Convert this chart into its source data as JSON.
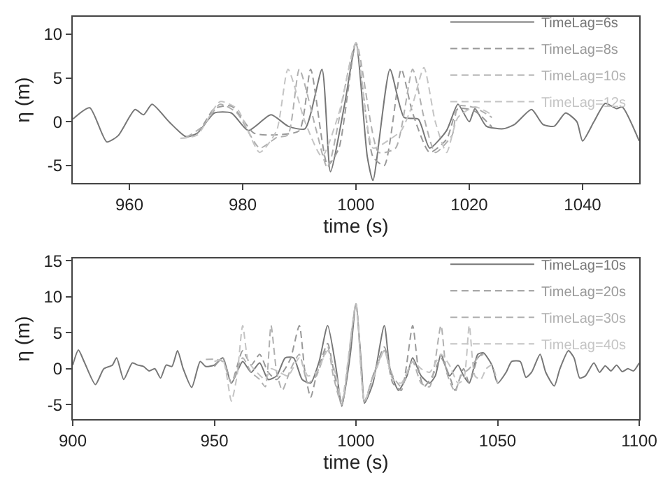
{
  "chart_data": [
    {
      "type": "line",
      "xlabel": "time (s)",
      "ylabel": "η (m)",
      "xlim": [
        950,
        1050
      ],
      "ylim": [
        -7,
        12
      ],
      "xticks": [
        960,
        980,
        1000,
        1020,
        1040
      ],
      "yticks": [
        -5,
        0,
        5,
        10
      ],
      "grid": false,
      "legend": "top right",
      "marker": "none",
      "series": [
        {
          "name": "TimeLag=6s",
          "color": "#777777",
          "line_style": "solid",
          "x": [
            950,
            953,
            956,
            958,
            961,
            962.5,
            964,
            967,
            970,
            972,
            975,
            978,
            981,
            985,
            988,
            991,
            994,
            995.5,
            998,
            1000,
            1002,
            1003,
            1006,
            1008.5,
            1011,
            1013,
            1016,
            1018,
            1020,
            1021,
            1023,
            1026,
            1028,
            1031,
            1033,
            1035,
            1037,
            1039,
            1040,
            1042,
            1044,
            1046,
            1047,
            1050
          ],
          "values": [
            0.3,
            1.6,
            -2.3,
            -1.6,
            1.4,
            0.8,
            2.0,
            0,
            -1.7,
            -1.3,
            1.0,
            1.0,
            -1.0,
            0.8,
            -0.5,
            -0.8,
            6,
            -5.7,
            2,
            9,
            -4,
            -6.7,
            6,
            0.5,
            0.3,
            -3,
            -1,
            2.0,
            0,
            1.5,
            -0.5,
            -0.8,
            -0.3,
            1.4,
            -0.3,
            -0.5,
            1.0,
            0,
            -2.2,
            0,
            2.1,
            1.5,
            1.7,
            -2.2
          ]
        },
        {
          "name": "TimeLag=8s",
          "color": "#999999",
          "line_style": "dashed",
          "x": [
            970,
            972,
            975,
            978,
            982,
            986,
            990,
            992,
            995,
            997,
            1000,
            1003,
            1005,
            1008,
            1010,
            1013,
            1016,
            1018,
            1021,
            1024
          ],
          "values": [
            -1.7,
            -1.3,
            1.5,
            1.8,
            -1.3,
            -1.5,
            -1,
            6,
            -5,
            -3,
            9,
            -4,
            -5,
            6,
            1,
            -3.5,
            -2,
            1.5,
            1.2,
            -0.6
          ]
        },
        {
          "name": "TimeLag=10s",
          "color": "#b0b0b0",
          "line_style": "dashed",
          "x": [
            970,
            973,
            976,
            979,
            983,
            986,
            988,
            990,
            993,
            995,
            1000,
            1004,
            1007,
            1010,
            1012,
            1014,
            1017,
            1018,
            1021,
            1024
          ],
          "values": [
            -1.8,
            -0.5,
            2,
            1,
            -3,
            -1.8,
            -1.5,
            6,
            -1,
            -5.3,
            9,
            -3.5,
            -3,
            6,
            0.5,
            -3.5,
            -1.5,
            1.8,
            1.6,
            0.5
          ]
        },
        {
          "name": "TimeLag=12s",
          "color": "#c4c4c4",
          "line_style": "dashed",
          "x": [
            969,
            972,
            976,
            979,
            983,
            986,
            988,
            991,
            994,
            997,
            1000,
            1003,
            1006,
            1008,
            1010,
            1012,
            1014,
            1016,
            1018,
            1021,
            1024
          ],
          "values": [
            -1.9,
            -1.5,
            2.3,
            1.5,
            -3.5,
            -1,
            6,
            0,
            -4,
            1,
            9,
            -3,
            -2,
            -1,
            2,
            6.2,
            0,
            -3.5,
            0.5,
            1.7,
            0.8
          ]
        }
      ]
    },
    {
      "type": "line",
      "xlabel": "time (s)",
      "ylabel": "η (m)",
      "xlim": [
        900,
        1100
      ],
      "ylim": [
        -7,
        15.3
      ],
      "xticks": [
        900,
        950,
        1000,
        1050,
        1100
      ],
      "yticks": [
        -5,
        0,
        5,
        10,
        15
      ],
      "grid": false,
      "legend": "top right",
      "marker": "none",
      "series": [
        {
          "name": "TimeLag=10s",
          "color": "#777777",
          "line_style": "solid",
          "x": [
            900,
            902,
            904,
            908,
            911,
            914,
            915.5,
            918,
            921,
            923,
            925,
            927,
            929,
            931,
            933,
            935,
            937,
            939,
            942,
            945,
            947,
            950,
            953,
            956,
            960,
            963,
            966,
            969,
            972,
            975,
            978,
            981,
            984,
            987,
            990,
            993,
            995,
            998,
            1000,
            1002,
            1003,
            1006,
            1010,
            1012,
            1015,
            1018,
            1020,
            1023,
            1026,
            1028,
            1030,
            1033,
            1036,
            1038,
            1040,
            1043,
            1045,
            1048,
            1050,
            1053,
            1055,
            1058,
            1060,
            1062,
            1065,
            1067,
            1070,
            1072,
            1075,
            1077,
            1079,
            1081,
            1084,
            1086,
            1088,
            1090,
            1092,
            1094,
            1096,
            1098,
            1100
          ],
          "values": [
            0.5,
            2.6,
            1.0,
            -2.2,
            0,
            0.5,
            1.5,
            -1.5,
            0.8,
            0.5,
            0.3,
            -0.3,
            0,
            -1.3,
            0.5,
            0.3,
            2.5,
            0,
            -2.6,
            1.0,
            0.3,
            0.5,
            1.5,
            -2,
            1,
            -0.5,
            0.8,
            -1.5,
            -1.0,
            1.5,
            1.5,
            -1.5,
            -2,
            1,
            6,
            0,
            -5.2,
            2,
            9,
            0,
            -4.8,
            -2,
            6,
            0,
            -3,
            -1,
            1.5,
            -1,
            -2,
            -1,
            2,
            -1,
            0.5,
            -1,
            -2,
            2,
            2.2,
            0.5,
            -2.0,
            -0.5,
            1.0,
            1.0,
            -1.2,
            -0.5,
            2.0,
            -0.5,
            -2.4,
            0,
            2.5,
            1.5,
            -1.3,
            -1.0,
            0.8,
            -0.5,
            0.4,
            -0.3,
            0.5,
            -0.4,
            0,
            -0.3,
            0.8
          ]
        },
        {
          "name": "TimeLag=20s",
          "color": "#999999",
          "line_style": "dashed",
          "x": [
            950,
            953,
            956,
            960,
            963,
            966,
            969,
            972,
            975,
            977,
            980,
            982,
            984,
            986,
            990,
            992,
            995,
            1000,
            1003,
            1006,
            1010,
            1013,
            1016,
            1020,
            1022,
            1024,
            1027,
            1030,
            1033,
            1035,
            1038,
            1040,
            1043,
            1045
          ],
          "values": [
            0.3,
            1.5,
            -2,
            2.5,
            0.5,
            2,
            -0.5,
            -1.5,
            0,
            1.5,
            6,
            -0.5,
            -4,
            -1,
            3.5,
            0,
            -5,
            9,
            -4.7,
            -1,
            3,
            -2,
            -3,
            6,
            0,
            -2.5,
            -1,
            1.5,
            -1,
            -3,
            0,
            -2,
            1.5,
            2.2
          ]
        },
        {
          "name": "TimeLag=30s",
          "color": "#b0b0b0",
          "line_style": "dashed",
          "x": [
            947,
            950,
            953,
            956,
            960,
            963,
            966,
            968,
            970,
            972,
            974,
            977,
            980,
            983,
            986,
            990,
            992,
            995,
            1000,
            1003,
            1006,
            1010,
            1013,
            1016,
            1020,
            1023,
            1026,
            1030,
            1032,
            1035,
            1037,
            1040,
            1043,
            1045
          ],
          "values": [
            1.3,
            1.3,
            1.0,
            -2.0,
            1.5,
            -0.5,
            -1.5,
            -2.5,
            6,
            -0.5,
            -3,
            0,
            2,
            -2,
            -1,
            3,
            -1,
            -5,
            9,
            -4.5,
            -1,
            2.5,
            -1,
            -2.5,
            1,
            -2,
            -2.5,
            6,
            -0.5,
            -3.2,
            -1,
            0,
            1.5,
            2
          ]
        },
        {
          "name": "TimeLag=40s",
          "color": "#c4c4c4",
          "line_style": "dashed",
          "x": [
            950,
            953,
            956,
            958,
            960,
            962,
            965,
            968,
            970,
            973,
            976,
            980,
            983,
            986,
            990,
            993,
            995,
            1000,
            1003,
            1006,
            1010,
            1013,
            1016,
            1020,
            1023,
            1026,
            1030,
            1033,
            1036,
            1038,
            1040,
            1042,
            1044,
            1046,
            1048,
            1050
          ],
          "values": [
            1.0,
            1.2,
            -4.5,
            -1,
            6,
            1,
            -0.5,
            -1.5,
            0,
            -0.5,
            -1.0,
            1.5,
            -1,
            -0.5,
            2.5,
            -1,
            -4.5,
            9,
            -4.6,
            -1.5,
            2.5,
            -1.5,
            -2,
            1,
            0,
            -0.5,
            2,
            0.5,
            -2,
            -1.5,
            6,
            -1,
            -1.5,
            0,
            0.5,
            -2
          ]
        }
      ]
    }
  ]
}
